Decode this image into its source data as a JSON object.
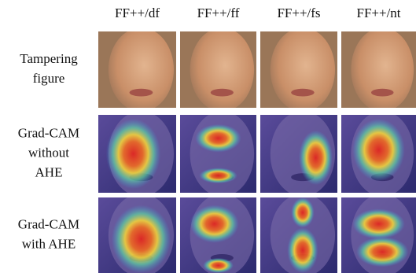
{
  "columns": [
    "FF++/df",
    "FF++/ff",
    "FF++/fs",
    "FF++/nt"
  ],
  "rows": [
    {
      "label": [
        "Tampering",
        "figure"
      ]
    },
    {
      "label": [
        "Grad-CAM",
        "without",
        "AHE"
      ]
    },
    {
      "label": [
        "Grad-CAM",
        "with AHE"
      ]
    }
  ]
}
